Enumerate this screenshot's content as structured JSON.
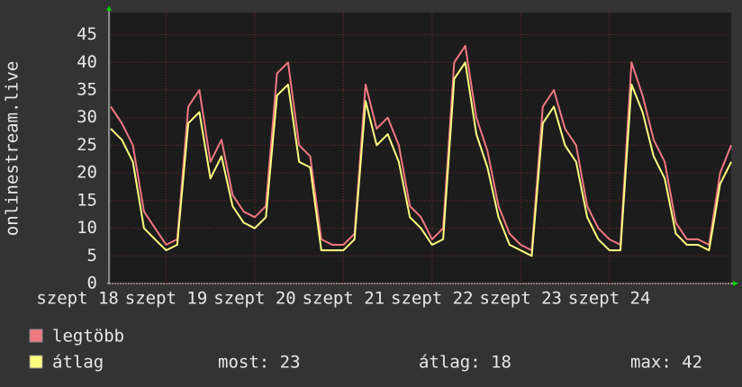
{
  "chart_data": {
    "type": "line",
    "y_label": "onlinestream.live",
    "x": [
      0,
      3,
      6,
      9,
      12,
      15,
      18,
      21,
      24,
      27,
      30,
      33,
      36,
      39,
      42,
      45,
      48,
      51,
      54,
      57,
      60,
      63,
      66,
      69,
      72,
      75,
      78,
      81,
      84,
      87,
      90,
      93,
      96,
      99,
      102,
      105,
      108,
      111,
      114,
      117,
      120,
      123,
      126,
      129,
      132,
      135,
      138,
      141,
      144,
      147,
      150,
      153,
      156,
      159,
      162,
      165,
      168
    ],
    "xlim": [
      0,
      168
    ],
    "xticks": [
      {
        "value": -9,
        "label": "szept 18"
      },
      {
        "value": 15,
        "label": "szept 19"
      },
      {
        "value": 39,
        "label": "szept 20"
      },
      {
        "value": 63,
        "label": "szept 21"
      },
      {
        "value": 87,
        "label": "szept 22"
      },
      {
        "value": 111,
        "label": "szept 23"
      },
      {
        "value": 135,
        "label": "szept 24"
      }
    ],
    "ylim": [
      0,
      49
    ],
    "yticks": [
      0,
      5,
      10,
      15,
      20,
      25,
      30,
      35,
      40,
      45
    ],
    "grid": true,
    "series": [
      {
        "name": "legtöbb",
        "color": "#f07880",
        "values": [
          32,
          29,
          25,
          13,
          10,
          7,
          8,
          32,
          35,
          22,
          26,
          16,
          13,
          12,
          14,
          38,
          40,
          25,
          23,
          8,
          7,
          7,
          9,
          36,
          28,
          30,
          25,
          14,
          12,
          8,
          10,
          40,
          43,
          30,
          24,
          14,
          9,
          7,
          6,
          32,
          35,
          28,
          25,
          14,
          10,
          8,
          7,
          40,
          34,
          26,
          22,
          11,
          8,
          8,
          7,
          20,
          25
        ]
      },
      {
        "name": "átlag",
        "color": "#ffff80",
        "values": [
          28,
          26,
          22,
          10,
          8,
          6,
          7,
          29,
          31,
          19,
          23,
          14,
          11,
          10,
          12,
          34,
          36,
          22,
          21,
          6,
          6,
          6,
          8,
          33,
          25,
          27,
          22,
          12,
          10,
          7,
          8,
          37,
          40,
          27,
          21,
          12,
          7,
          6,
          5,
          29,
          32,
          25,
          22,
          12,
          8,
          6,
          6,
          36,
          31,
          23,
          19,
          9,
          7,
          7,
          6,
          18,
          22
        ]
      }
    ],
    "stats": {
      "most": "most: 23",
      "atlag": "átlag: 18",
      "max": "max: 42"
    }
  }
}
